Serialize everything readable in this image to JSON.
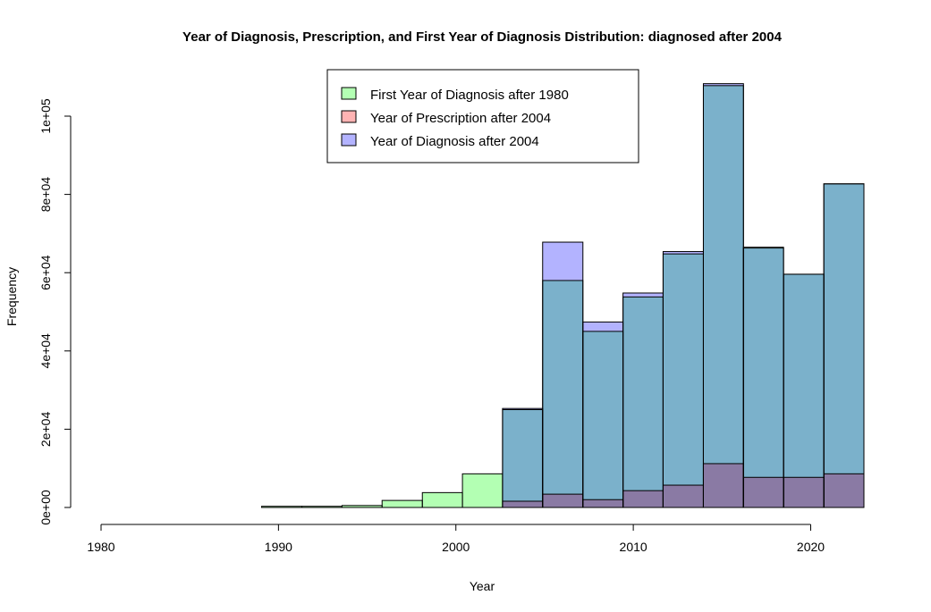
{
  "chart_data": {
    "type": "bar",
    "title": "Year of Diagnosis, Prescription, and First Year of Diagnosis Distribution: diagnosed after 2004",
    "xlabel": "Year",
    "ylabel": "Frequency",
    "xlim": [
      1980,
      2023
    ],
    "ylim": [
      0,
      108000
    ],
    "x_ticks": [
      1980,
      1990,
      2000,
      2010,
      2020
    ],
    "x_tick_labels": [
      "1980",
      "1990",
      "2000",
      "2010",
      "2020"
    ],
    "y_ticks": [
      0,
      20000,
      40000,
      60000,
      80000,
      100000
    ],
    "y_tick_labels": [
      "0e+00",
      "2e+04",
      "4e+04",
      "6e+04",
      "8e+04",
      "1e+05"
    ],
    "bin_edges": [
      1980.0,
      1982.26,
      1984.53,
      1986.79,
      1989.05,
      1991.32,
      1993.58,
      1995.84,
      1998.11,
      2000.37,
      2002.63,
      2004.89,
      2007.16,
      2009.42,
      2011.68,
      2013.95,
      2016.21,
      2018.47,
      2020.74,
      2023.0
    ],
    "legend": {
      "position": "top-center",
      "entries": [
        {
          "label": "First Year of Diagnosis after 1980",
          "color": "#b3ffb3"
        },
        {
          "label": "Year of Prescription after 2004",
          "color": "#ffb3b3"
        },
        {
          "label": "Year of Diagnosis after 2004",
          "color": "#b3b3ff"
        }
      ]
    },
    "series": [
      {
        "name": "First Year of Diagnosis after 1980",
        "color": "#b3ffb3",
        "values": [
          0,
          0,
          0,
          0,
          300,
          300,
          500,
          1800,
          3800,
          8600,
          25000,
          58000,
          45000,
          53800,
          64800,
          107800,
          66500,
          59600,
          82700
        ]
      },
      {
        "name": "Year of Prescription after 2004",
        "color": "#ffb3b3",
        "values": [
          0,
          0,
          0,
          0,
          0,
          0,
          0,
          0,
          0,
          0,
          1600,
          3400,
          2000,
          4300,
          5700,
          11200,
          7700,
          7700,
          8600
        ]
      },
      {
        "name": "Year of Diagnosis after 2004",
        "color": "#b3b3ff",
        "values": [
          0,
          0,
          0,
          0,
          0,
          0,
          0,
          0,
          0,
          0,
          25300,
          67800,
          47400,
          54800,
          65400,
          108300,
          66300,
          59600,
          82700
        ]
      }
    ],
    "grid": false
  },
  "colors": {
    "green_overlap_blue": "#7bb1cb",
    "red_overlap_blue": "#8a7aa4",
    "axis": "#000000"
  }
}
